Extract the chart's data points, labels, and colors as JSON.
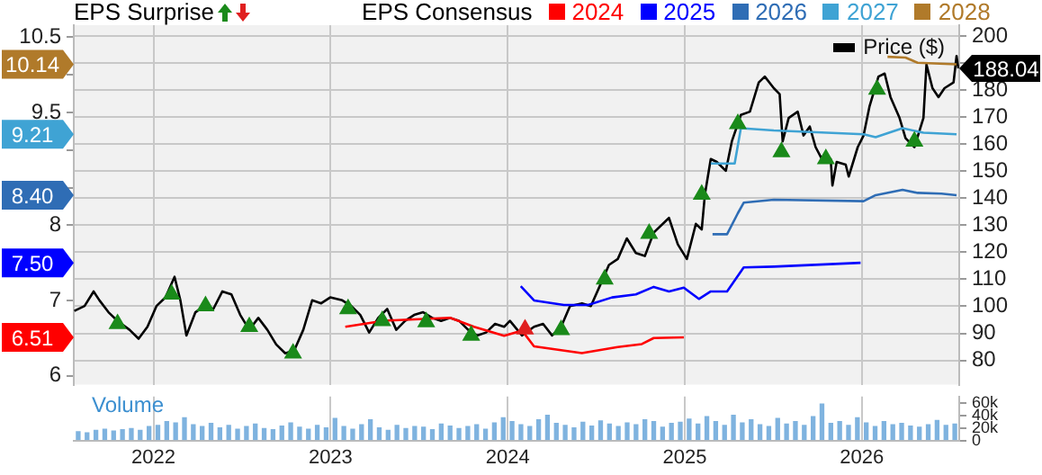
{
  "chart_data": [
    {
      "type": "line",
      "annotations": [
        "EPS Surprise"
      ],
      "legend_title": "EPS Consensus",
      "legend": "top",
      "grid": true,
      "marker": "none",
      "tick_labels": "y",
      "xlim": [
        2021.55,
        2026.55
      ],
      "xticks": [
        2022,
        2023,
        2024,
        2025,
        2026
      ],
      "ylim": [
        5.88,
        10.66
      ],
      "yticks": [
        6,
        {
          "value": 6.5,
          "label": null
        },
        6.51,
        7,
        {
          "value": 7.5,
          "label": "7.50"
        },
        8,
        {
          "value": 8.4,
          "label": "8.40"
        },
        {
          "value": 8.5,
          "label": null
        },
        {
          "value": 9,
          "label": null
        },
        9.21,
        9.5,
        {
          "value": 10,
          "label": null
        },
        10.14,
        10.5
      ],
      "y2lim": [
        71,
        204
      ],
      "y2ticks": [
        80,
        90,
        100,
        110,
        120,
        130,
        140,
        150,
        160,
        170,
        180,
        {
          "value": 190,
          "label": null
        },
        200
      ],
      "series": [
        {
          "name": "2024",
          "color": "#ff0000",
          "x": [
            2023.083,
            2023.303,
            2023.675,
            2023.81,
            2023.98,
            2024.081,
            2024.149,
            2024.419,
            2024.622,
            2024.758,
            2024.825,
            2024.995
          ],
          "values": [
            6.65,
            6.73,
            6.77,
            6.65,
            6.53,
            6.6,
            6.39,
            6.3,
            6.38,
            6.42,
            6.5,
            6.51
          ]
        },
        {
          "name": "2025",
          "color": "#0000ff",
          "x": [
            2024.074,
            2024.149,
            2024.318,
            2024.454,
            2024.589,
            2024.724,
            2024.825,
            2024.911,
            2024.995,
            2025.08,
            2025.147,
            2025.239,
            2025.333,
            2025.503,
            2025.993
          ],
          "values": [
            7.19,
            7.0,
            6.94,
            6.94,
            7.04,
            7.08,
            7.18,
            7.12,
            7.17,
            7.02,
            7.12,
            7.12,
            7.44,
            7.45,
            7.5
          ]
        },
        {
          "name": "2026",
          "color": "#2f6db5",
          "x": [
            2025.157,
            2025.239,
            2025.3,
            2025.333,
            2025.503,
            2026.01,
            2026.078,
            2026.23,
            2026.315,
            2026.45,
            2026.535
          ],
          "values": [
            7.88,
            7.88,
            8.16,
            8.3,
            8.34,
            8.32,
            8.4,
            8.47,
            8.43,
            8.42,
            8.4
          ]
        },
        {
          "name": "2027",
          "color": "#3fa3d4",
          "x": [
            2025.147,
            2025.282,
            2025.317,
            2025.503,
            2026.01,
            2026.078,
            2026.23,
            2026.348,
            2026.535
          ],
          "values": [
            8.82,
            8.82,
            9.29,
            9.26,
            9.21,
            9.17,
            9.29,
            9.23,
            9.21
          ]
        },
        {
          "name": "2028",
          "color": "#b07a2a",
          "x": [
            2026.145,
            2026.247,
            2026.315,
            2026.535
          ],
          "values": [
            10.24,
            10.23,
            10.16,
            10.14
          ]
        },
        {
          "name": "Price ($)",
          "color": "#000000",
          "axis": "y2",
          "x": [
            2021.553,
            2021.611,
            2021.662,
            2021.695,
            2021.746,
            2021.797,
            2021.865,
            2021.916,
            2021.966,
            2022.017,
            2022.068,
            2022.119,
            2022.152,
            2022.186,
            2022.237,
            2022.287,
            2022.338,
            2022.389,
            2022.44,
            2022.49,
            2022.541,
            2022.592,
            2022.643,
            2022.693,
            2022.744,
            2022.795,
            2022.846,
            2022.896,
            2022.947,
            2022.998,
            2023.066,
            2023.117,
            2023.168,
            2023.218,
            2023.269,
            2023.32,
            2023.371,
            2023.421,
            2023.472,
            2023.523,
            2023.574,
            2023.624,
            2023.675,
            2023.726,
            2023.777,
            2023.827,
            2023.878,
            2023.929,
            2023.98,
            2024.013,
            2024.081,
            2024.149,
            2024.2,
            2024.251,
            2024.302,
            2024.352,
            2024.42,
            2024.47,
            2024.521,
            2024.572,
            2024.622,
            2024.673,
            2024.724,
            2024.775,
            2024.825,
            2024.911,
            2024.961,
            2025.012,
            2025.063,
            2025.096,
            2025.114,
            2025.147,
            2025.181,
            2025.232,
            2025.266,
            2025.317,
            2025.368,
            2025.418,
            2025.452,
            2025.503,
            2025.536,
            2025.553,
            2025.587,
            2025.638,
            2025.671,
            2025.706,
            2025.739,
            2025.774,
            2025.824,
            2025.834,
            2025.858,
            2025.909,
            2025.926,
            2025.977,
            2026.01,
            2026.044,
            2026.094,
            2026.129,
            2026.162,
            2026.213,
            2026.247,
            2026.297,
            2026.348,
            2026.365,
            2026.399,
            2026.433,
            2026.467,
            2026.518,
            2026.535,
            2026.545
          ],
          "values": [
            98.3,
            100.1,
            105.5,
            102.2,
            97.8,
            94.6,
            91.3,
            88.0,
            92.4,
            100.1,
            103.3,
            110.9,
            102.2,
            89.2,
            97.8,
            100.1,
            99.0,
            105.5,
            104.4,
            96.8,
            91.3,
            95.7,
            91.3,
            85.9,
            82.6,
            83.7,
            91.3,
            102.2,
            101.1,
            103.3,
            102.2,
            100.1,
            96.8,
            90.3,
            95.7,
            99.0,
            91.3,
            94.6,
            96.8,
            97.8,
            95.7,
            94.6,
            95.7,
            94.6,
            91.3,
            89.2,
            90.3,
            93.5,
            92.4,
            94.6,
            89.2,
            92.4,
            93.5,
            89.2,
            92.4,
            100.1,
            101.1,
            100.1,
            107.6,
            115.3,
            117.5,
            125.1,
            119.7,
            118.6,
            127.3,
            132.7,
            122.9,
            117.5,
            130.5,
            128.4,
            141.4,
            154.5,
            153.4,
            150.1,
            161.0,
            170.8,
            172.0,
            182.8,
            185.0,
            180.7,
            178.5,
            161.0,
            169.7,
            172.0,
            163.2,
            166.5,
            158.9,
            154.5,
            154.5,
            144.7,
            153.4,
            152.4,
            148.0,
            158.9,
            163.2,
            174.1,
            185.0,
            186.1,
            177.4,
            169.7,
            162.2,
            158.9,
            169.7,
            189.5,
            180.7,
            177.4,
            180.7,
            182.8,
            192.6,
            188.04
          ],
          "value_labels": [
            null,
            null,
            null,
            null,
            null,
            null,
            null,
            null,
            null,
            null,
            null,
            null,
            null,
            null,
            null,
            null,
            null,
            null,
            null,
            null,
            null,
            null,
            null,
            null,
            null,
            null,
            null,
            null,
            null,
            null,
            null,
            null,
            null,
            null,
            null,
            null,
            null,
            null,
            null,
            null,
            null,
            null,
            null,
            null,
            null,
            null,
            null,
            null,
            null,
            null,
            null,
            null,
            null,
            null,
            null,
            null,
            null,
            null,
            null,
            null,
            null,
            null,
            null,
            null,
            null,
            null,
            null,
            null,
            null,
            null,
            null,
            null,
            null,
            null,
            null,
            null,
            null,
            null,
            null,
            null,
            null,
            null,
            null,
            null,
            null,
            null,
            null,
            null,
            null,
            null,
            null,
            null,
            null,
            null,
            null,
            null,
            null,
            null,
            null,
            null,
            null,
            null,
            null,
            null,
            null,
            null,
            null,
            null,
            null,
            "188.04"
          ]
        },
        {
          "type": "scatter",
          "color": "#1a8a1a",
          "axis": "y2",
          "marker": "triangle",
          "x": [
            2021.797,
            2022.102,
            2022.294,
            2022.541,
            2022.788,
            2023.099,
            2023.292,
            2023.54,
            2023.794,
            2024.302,
            2024.548,
            2024.799,
            2025.096,
            2025.3,
            2025.546,
            2025.797,
            2026.086,
            2026.297
          ],
          "values": [
            93.5,
            104.4,
            100.1,
            92.4,
            82.6,
            99.0,
            94.6,
            94.2,
            89.2,
            91.3,
            110.0,
            126.9,
            141.4,
            167.5,
            157.1,
            154.5,
            180.2,
            161.0
          ]
        },
        {
          "type": "scatter",
          "color": "#e02020",
          "axis": "y2",
          "marker": "triangle",
          "x": [
            2024.098
          ],
          "values": [
            91.5
          ]
        }
      ]
    },
    {
      "type": "bar",
      "annotations": [
        "Volume"
      ],
      "grid": "x",
      "xlim": [
        2021.55,
        2026.55
      ],
      "xticks": [
        2022,
        2023,
        2024,
        2025,
        2026
      ],
      "y2lim": [
        0,
        70000
      ],
      "y2ticks": [
        0,
        {
          "value": 20000,
          "label": "20k"
        },
        {
          "value": 40000,
          "label": "40k"
        },
        {
          "value": 60000,
          "label": "60k"
        }
      ],
      "x": [
        2021.575,
        2021.625,
        2021.675,
        2021.725,
        2021.775,
        2021.825,
        2021.875,
        2021.925,
        2021.975,
        2022.025,
        2022.075,
        2022.125,
        2022.175,
        2022.225,
        2022.275,
        2022.325,
        2022.375,
        2022.425,
        2022.475,
        2022.525,
        2022.575,
        2022.625,
        2022.675,
        2022.725,
        2022.775,
        2022.825,
        2022.875,
        2022.925,
        2022.975,
        2023.025,
        2023.075,
        2023.125,
        2023.175,
        2023.225,
        2023.275,
        2023.325,
        2023.375,
        2023.425,
        2023.475,
        2023.525,
        2023.575,
        2023.625,
        2023.675,
        2023.725,
        2023.775,
        2023.825,
        2023.875,
        2023.925,
        2023.975,
        2024.025,
        2024.075,
        2024.125,
        2024.175,
        2024.225,
        2024.275,
        2024.325,
        2024.375,
        2024.425,
        2024.475,
        2024.525,
        2024.575,
        2024.625,
        2024.675,
        2024.725,
        2024.775,
        2024.825,
        2024.875,
        2024.925,
        2024.975,
        2025.025,
        2025.075,
        2025.125,
        2025.175,
        2025.225,
        2025.275,
        2025.325,
        2025.375,
        2025.425,
        2025.475,
        2025.525,
        2025.575,
        2025.625,
        2025.675,
        2025.725,
        2025.775,
        2025.825,
        2025.875,
        2025.925,
        2025.975,
        2026.025,
        2026.075,
        2026.125,
        2026.175,
        2026.225,
        2026.275,
        2026.325,
        2026.375,
        2026.425,
        2026.475,
        2026.525
      ],
      "series": [
        {
          "color": "#7fb3df",
          "axis": "y2",
          "values": [
            14000,
            12000,
            16000,
            18000,
            15000,
            17000,
            19000,
            16000,
            22000,
            24000,
            30000,
            28000,
            36000,
            25000,
            22000,
            27000,
            20000,
            24000,
            18000,
            22000,
            26000,
            19000,
            17000,
            23000,
            28000,
            21000,
            18000,
            24000,
            20000,
            35000,
            22000,
            18000,
            25000,
            33000,
            20000,
            16000,
            24000,
            19000,
            22000,
            21000,
            17000,
            26000,
            23000,
            19000,
            22000,
            25000,
            18000,
            28000,
            36000,
            30000,
            25000,
            22000,
            33000,
            40000,
            27000,
            24000,
            20000,
            29000,
            23000,
            31000,
            26000,
            22000,
            28000,
            25000,
            33000,
            30000,
            21000,
            27000,
            29000,
            34000,
            26000,
            38000,
            30000,
            24000,
            40000,
            28000,
            33000,
            25000,
            22000,
            35000,
            26000,
            30000,
            24000,
            38000,
            58000,
            27000,
            30000,
            24000,
            36000,
            28000,
            22000,
            30000,
            25000,
            27000,
            23000,
            21000,
            25000,
            32000,
            24000,
            26000
          ]
        }
      ]
    }
  ]
}
